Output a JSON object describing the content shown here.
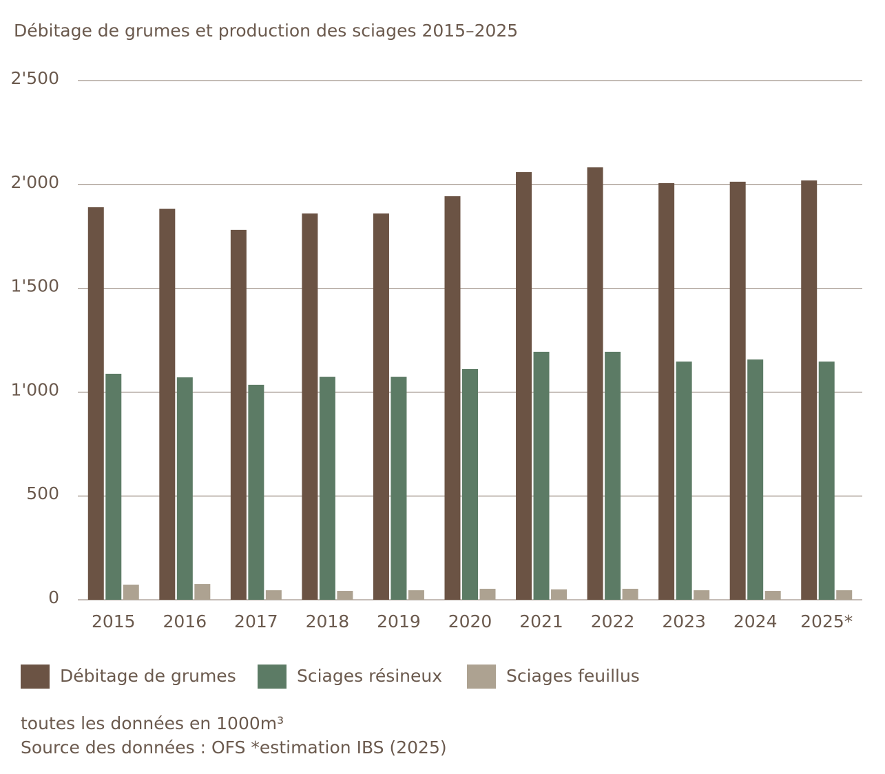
{
  "chart_data": {
    "type": "bar",
    "title": "Débitage de grumes et production des sciages 2015–2025",
    "categories": [
      "2015",
      "2016",
      "2017",
      "2018",
      "2019",
      "2020",
      "2021",
      "2022",
      "2023",
      "2024",
      "2025*"
    ],
    "series": [
      {
        "name": "Débitage de grumes",
        "color": "#6b5344",
        "values": [
          1890,
          1883,
          1781,
          1860,
          1860,
          1943,
          2059,
          2082,
          2006,
          2013,
          2019
        ]
      },
      {
        "name": "Sciages résineux",
        "color": "#5c7b65",
        "values": [
          1088,
          1071,
          1035,
          1074,
          1074,
          1111,
          1194,
          1194,
          1147,
          1157,
          1147
        ]
      },
      {
        "name": "Sciages feuillus",
        "color": "#ada291",
        "values": [
          73,
          76,
          46,
          43,
          46,
          53,
          50,
          53,
          46,
          43,
          46
        ]
      }
    ],
    "ylim": [
      0,
      2500
    ],
    "yticks": [
      0,
      500,
      {
        "value": 1000,
        "label": "1'000"
      },
      {
        "value": 1500,
        "label": "1'500"
      },
      {
        "value": 2000,
        "label": "2'000"
      },
      {
        "value": 2500,
        "label": "2'500"
      }
    ],
    "grid": true,
    "legend": "bottom",
    "notes": [
      "toutes les données en 1000m³",
      "Source des données : OFS *estimation IBS (2025)"
    ]
  }
}
